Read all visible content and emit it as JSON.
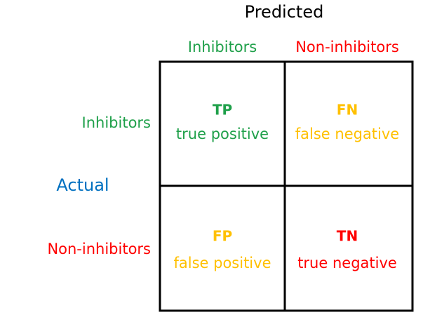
{
  "predicted": {
    "title": "Predicted",
    "columns": [
      "Inhibitors",
      "Non-inhibitors"
    ]
  },
  "actual": {
    "title": "Actual",
    "rows": [
      "Inhibitors",
      "Non-inhibitors"
    ]
  },
  "cells": [
    [
      {
        "abbr": "TP",
        "label": "true positive"
      },
      {
        "abbr": "FN",
        "label": "false negative"
      }
    ],
    [
      {
        "abbr": "FP",
        "label": "false positive"
      },
      {
        "abbr": "TN",
        "label": "true negative"
      }
    ]
  ]
}
